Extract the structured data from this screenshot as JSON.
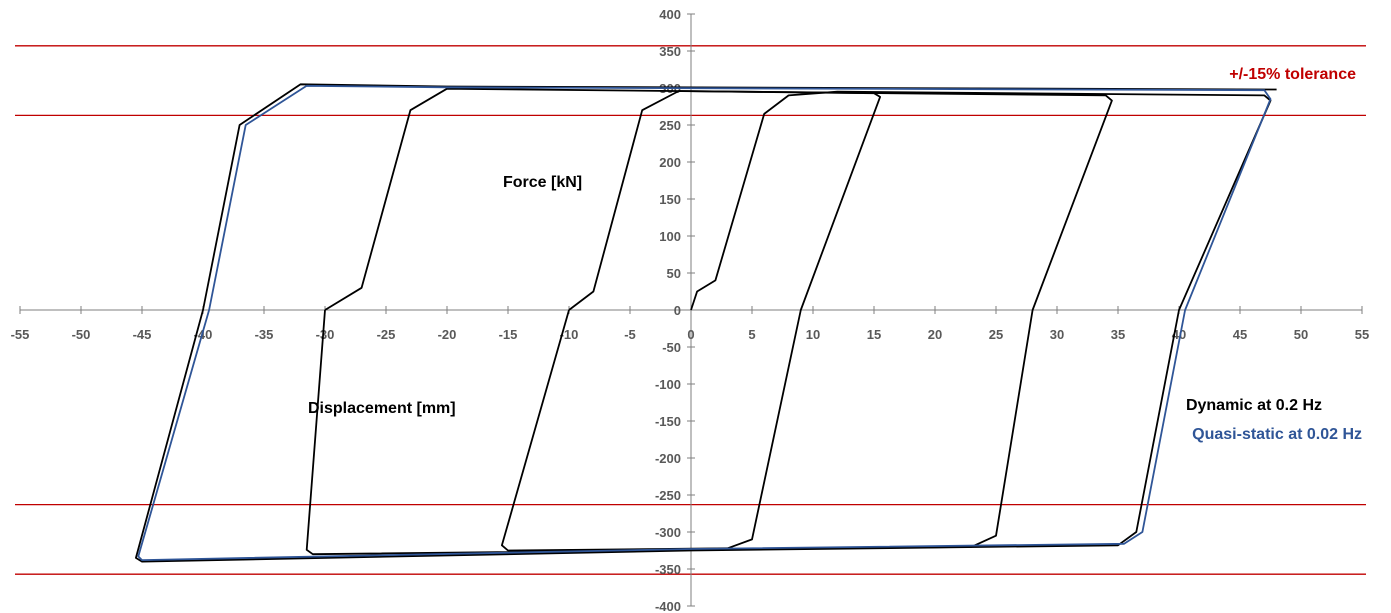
{
  "chart_data": {
    "type": "line",
    "title": "",
    "xlabel": "Displacement [mm]",
    "ylabel": "Force [kN]",
    "xlim": [
      -55,
      55
    ],
    "ylim": [
      -400,
      400
    ],
    "x_ticks": [
      -55,
      -50,
      -45,
      -40,
      -35,
      -30,
      -25,
      -20,
      -15,
      -10,
      -5,
      0,
      5,
      10,
      15,
      20,
      25,
      30,
      35,
      40,
      45,
      50,
      55
    ],
    "y_ticks": [
      -400,
      -350,
      -300,
      -250,
      -200,
      -150,
      -100,
      -50,
      0,
      50,
      100,
      150,
      200,
      250,
      300,
      350,
      400
    ],
    "grid": false,
    "tolerance_label": "+/-15% tolerance",
    "tolerance_lines": [
      357,
      263,
      -263,
      -357
    ],
    "legend": [
      {
        "name": "Dynamic at 0.2 Hz",
        "color": "#000000"
      },
      {
        "name": "Quasi-static at 0.02 Hz",
        "color": "#2F5597"
      }
    ],
    "series": [
      {
        "name": "Dynamic at 0.2 Hz",
        "points": [
          [
            0,
            0
          ],
          [
            0.5,
            25
          ],
          [
            2,
            40
          ],
          [
            6,
            265
          ],
          [
            8,
            290
          ],
          [
            12,
            295
          ],
          [
            47,
            290
          ],
          [
            47.5,
            283
          ],
          [
            40,
            0
          ],
          [
            36.5,
            -300
          ],
          [
            35,
            -318
          ],
          [
            0,
            -325
          ],
          [
            -45,
            -340
          ],
          [
            -45.5,
            -335
          ],
          [
            -40,
            0
          ],
          [
            -37,
            250
          ],
          [
            -32,
            305
          ],
          [
            -20,
            302
          ],
          [
            48,
            298
          ]
        ]
      },
      {
        "name": "Dynamic at 0.2 Hz",
        "points": [
          [
            -10,
            0
          ],
          [
            -8,
            25
          ],
          [
            -4,
            270
          ],
          [
            -1,
            296
          ],
          [
            15,
            293
          ],
          [
            15.5,
            288
          ],
          [
            9,
            0
          ],
          [
            5,
            -310
          ],
          [
            3,
            -322
          ],
          [
            -15,
            -325
          ],
          [
            -15.5,
            -318
          ],
          [
            -10,
            0
          ]
        ]
      },
      {
        "name": "Dynamic at 0.2 Hz",
        "points": [
          [
            -30,
            0
          ],
          [
            -27,
            30
          ],
          [
            -23,
            270
          ],
          [
            -20,
            299
          ],
          [
            34,
            290
          ],
          [
            34.5,
            283
          ],
          [
            28,
            0
          ],
          [
            25,
            -305
          ],
          [
            23,
            -320
          ],
          [
            -31,
            -330
          ],
          [
            -31.5,
            -324
          ],
          [
            -30,
            0
          ]
        ]
      },
      {
        "name": "Quasi-static at 0.02 Hz",
        "points": [
          [
            -39.5,
            0
          ],
          [
            -36.5,
            250
          ],
          [
            -31.5,
            303
          ],
          [
            -20,
            301
          ],
          [
            47,
            297
          ],
          [
            47.5,
            285
          ],
          [
            40.5,
            0
          ],
          [
            37,
            -300
          ],
          [
            35.5,
            -316
          ],
          [
            0,
            -323
          ],
          [
            -45,
            -338
          ],
          [
            -45.3,
            -333
          ],
          [
            -39.5,
            0
          ]
        ]
      }
    ]
  }
}
